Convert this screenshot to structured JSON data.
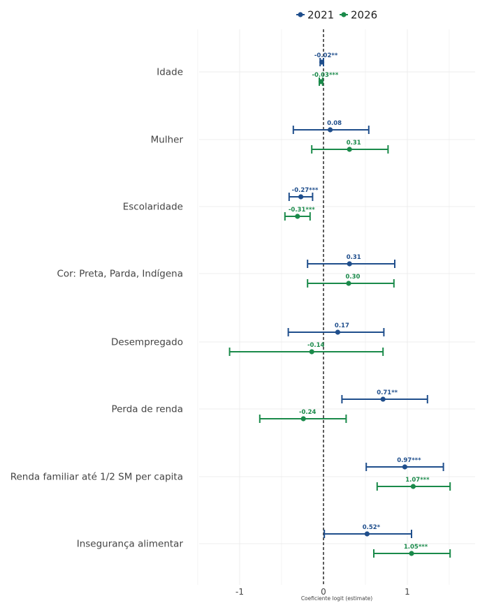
{
  "chart_data": {
    "type": "forest",
    "xlabel": "Coeficiente logit (estimate)",
    "xlim": [
      -1.5,
      1.6
    ],
    "xticks": [
      "-1",
      "0",
      "1"
    ],
    "reference_line": 0,
    "legend_position": "top",
    "colors": {
      "2021": "#1f4e8c",
      "2026": "#1a8a4a"
    },
    "categories": [
      "Idade",
      "Mulher",
      "Escolaridade",
      "Cor: Preta, Parda, Indígena",
      "Desempregado",
      "Perda de renda",
      "Renda familiar até 1/2 SM per capita",
      "Insegurança alimentar"
    ],
    "series": [
      {
        "name": "2021",
        "estimates": [
          -0.02,
          0.08,
          -0.27,
          0.31,
          0.17,
          0.71,
          0.97,
          0.52
        ],
        "lower": [
          -0.04,
          -0.36,
          -0.41,
          -0.19,
          -0.42,
          0.22,
          0.51,
          0.01
        ],
        "upper": [
          0.0,
          0.54,
          -0.13,
          0.85,
          0.72,
          1.24,
          1.43,
          1.05
        ],
        "labels": [
          "-0.02**",
          "0.08",
          "-0.27***",
          "0.31",
          "0.17",
          "0.71**",
          "0.97***",
          "0.52*"
        ]
      },
      {
        "name": "2026",
        "estimates": [
          -0.03,
          0.31,
          -0.31,
          0.3,
          -0.14,
          -0.24,
          1.07,
          1.05
        ],
        "lower": [
          -0.05,
          -0.14,
          -0.46,
          -0.19,
          -1.12,
          -0.76,
          0.64,
          0.6
        ],
        "upper": [
          -0.01,
          0.77,
          -0.16,
          0.84,
          0.71,
          0.27,
          1.51,
          1.51
        ],
        "labels": [
          "-0.03***",
          "0.31",
          "-0.31***",
          "0.30",
          "-0.14",
          "-0.24",
          "1.07***",
          "1.05***"
        ]
      }
    ]
  }
}
